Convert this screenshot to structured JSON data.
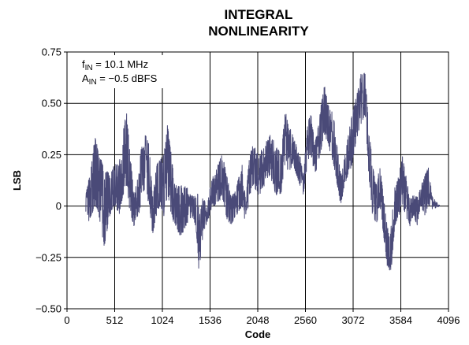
{
  "chart_data": {
    "type": "line",
    "title_line1": "INTEGRAL",
    "title_line2": "NONLINEARITY",
    "xlabel": "Code",
    "ylabel": "LSB",
    "xlim": [
      0,
      4096
    ],
    "ylim": [
      -0.5,
      0.75
    ],
    "x_ticks": [
      0,
      512,
      1024,
      1536,
      2048,
      2560,
      3072,
      3584,
      4096
    ],
    "x_tick_labels": [
      "0",
      "512",
      "1024",
      "1536",
      "2048",
      "2560",
      "3072",
      "3584",
      "4096"
    ],
    "y_ticks": [
      -0.5,
      -0.25,
      0,
      0.25,
      0.5,
      0.75
    ],
    "y_tick_labels": [
      "−0.50",
      "−0.25",
      "0",
      "0.25",
      "0.50",
      "0.75"
    ],
    "grid": true,
    "line_color": "#4a4a78",
    "annotation": {
      "f_main": "f",
      "f_sub": "IN",
      "f_rest": " = 10.1 MHz",
      "a_main": "A",
      "a_sub": "IN",
      "a_rest": " = −0.5 dBFS"
    },
    "series": [
      {
        "envelope": [
          {
            "x": 200,
            "lo": -0.1,
            "hi": 0.05
          },
          {
            "x": 260,
            "lo": -0.05,
            "hi": 0.2
          },
          {
            "x": 300,
            "lo": 0.0,
            "hi": 0.35
          },
          {
            "x": 340,
            "lo": -0.05,
            "hi": 0.25
          },
          {
            "x": 400,
            "lo": -0.2,
            "hi": 0.2
          },
          {
            "x": 460,
            "lo": -0.05,
            "hi": 0.15
          },
          {
            "x": 520,
            "lo": 0.0,
            "hi": 0.22
          },
          {
            "x": 560,
            "lo": -0.05,
            "hi": 0.2
          },
          {
            "x": 600,
            "lo": 0.05,
            "hi": 0.38
          },
          {
            "x": 640,
            "lo": 0.1,
            "hi": 0.45
          },
          {
            "x": 680,
            "lo": -0.05,
            "hi": 0.25
          },
          {
            "x": 720,
            "lo": -0.1,
            "hi": 0.05
          },
          {
            "x": 760,
            "lo": -0.05,
            "hi": 0.15
          },
          {
            "x": 800,
            "lo": 0.0,
            "hi": 0.3
          },
          {
            "x": 840,
            "lo": 0.1,
            "hi": 0.35
          },
          {
            "x": 880,
            "lo": 0.0,
            "hi": 0.3
          },
          {
            "x": 920,
            "lo": -0.15,
            "hi": 0.05
          },
          {
            "x": 960,
            "lo": -0.05,
            "hi": 0.2
          },
          {
            "x": 1000,
            "lo": 0.0,
            "hi": 0.25
          },
          {
            "x": 1040,
            "lo": -0.05,
            "hi": 0.25
          },
          {
            "x": 1080,
            "lo": 0.05,
            "hi": 0.4
          },
          {
            "x": 1120,
            "lo": -0.05,
            "hi": 0.25
          },
          {
            "x": 1160,
            "lo": -0.1,
            "hi": 0.1
          },
          {
            "x": 1220,
            "lo": -0.15,
            "hi": 0.1
          },
          {
            "x": 1280,
            "lo": -0.1,
            "hi": 0.1
          },
          {
            "x": 1340,
            "lo": -0.05,
            "hi": 0.05
          },
          {
            "x": 1380,
            "lo": -0.1,
            "hi": 0.05
          },
          {
            "x": 1400,
            "lo": -0.2,
            "hi": 0.1
          },
          {
            "x": 1420,
            "lo": -0.35,
            "hi": -0.05
          },
          {
            "x": 1460,
            "lo": -0.15,
            "hi": 0.05
          },
          {
            "x": 1500,
            "lo": -0.1,
            "hi": 0.0
          },
          {
            "x": 1560,
            "lo": 0.0,
            "hi": 0.15
          },
          {
            "x": 1620,
            "lo": 0.0,
            "hi": 0.2
          },
          {
            "x": 1660,
            "lo": 0.05,
            "hi": 0.25
          },
          {
            "x": 1700,
            "lo": -0.05,
            "hi": 0.2
          },
          {
            "x": 1760,
            "lo": -0.1,
            "hi": 0.05
          },
          {
            "x": 1820,
            "lo": -0.05,
            "hi": 0.1
          },
          {
            "x": 1880,
            "lo": 0.0,
            "hi": 0.2
          },
          {
            "x": 1920,
            "lo": -0.1,
            "hi": 0.05
          },
          {
            "x": 1960,
            "lo": 0.05,
            "hi": 0.25
          },
          {
            "x": 2000,
            "lo": 0.1,
            "hi": 0.3
          },
          {
            "x": 2060,
            "lo": 0.05,
            "hi": 0.25
          },
          {
            "x": 2120,
            "lo": 0.1,
            "hi": 0.3
          },
          {
            "x": 2180,
            "lo": 0.15,
            "hi": 0.35
          },
          {
            "x": 2240,
            "lo": 0.05,
            "hi": 0.3
          },
          {
            "x": 2300,
            "lo": 0.05,
            "hi": 0.25
          },
          {
            "x": 2340,
            "lo": 0.2,
            "hi": 0.48
          },
          {
            "x": 2380,
            "lo": 0.15,
            "hi": 0.4
          },
          {
            "x": 2420,
            "lo": 0.2,
            "hi": 0.35
          },
          {
            "x": 2460,
            "lo": 0.15,
            "hi": 0.3
          },
          {
            "x": 2500,
            "lo": 0.1,
            "hi": 0.25
          },
          {
            "x": 2540,
            "lo": 0.05,
            "hi": 0.15
          },
          {
            "x": 2580,
            "lo": 0.2,
            "hi": 0.4
          },
          {
            "x": 2620,
            "lo": 0.25,
            "hi": 0.45
          },
          {
            "x": 2660,
            "lo": 0.15,
            "hi": 0.3
          },
          {
            "x": 2700,
            "lo": 0.2,
            "hi": 0.4
          },
          {
            "x": 2760,
            "lo": 0.35,
            "hi": 0.6
          },
          {
            "x": 2800,
            "lo": 0.3,
            "hi": 0.5
          },
          {
            "x": 2860,
            "lo": 0.2,
            "hi": 0.45
          },
          {
            "x": 2900,
            "lo": 0.1,
            "hi": 0.3
          },
          {
            "x": 2940,
            "lo": 0.0,
            "hi": 0.15
          },
          {
            "x": 2980,
            "lo": 0.1,
            "hi": 0.25
          },
          {
            "x": 3020,
            "lo": 0.15,
            "hi": 0.35
          },
          {
            "x": 3060,
            "lo": 0.2,
            "hi": 0.45
          },
          {
            "x": 3100,
            "lo": 0.3,
            "hi": 0.52
          },
          {
            "x": 3160,
            "lo": 0.4,
            "hi": 0.65
          },
          {
            "x": 3200,
            "lo": 0.45,
            "hi": 0.65
          },
          {
            "x": 3240,
            "lo": 0.15,
            "hi": 0.4
          },
          {
            "x": 3280,
            "lo": -0.05,
            "hi": 0.2
          },
          {
            "x": 3320,
            "lo": -0.1,
            "hi": 0.1
          },
          {
            "x": 3360,
            "lo": 0.0,
            "hi": 0.2
          },
          {
            "x": 3400,
            "lo": -0.15,
            "hi": 0.05
          },
          {
            "x": 3440,
            "lo": -0.3,
            "hi": -0.1
          },
          {
            "x": 3480,
            "lo": -0.32,
            "hi": -0.08
          },
          {
            "x": 3520,
            "lo": -0.1,
            "hi": 0.1
          },
          {
            "x": 3560,
            "lo": -0.05,
            "hi": 0.15
          },
          {
            "x": 3600,
            "lo": 0.0,
            "hi": 0.25
          },
          {
            "x": 3640,
            "lo": -0.05,
            "hi": 0.15
          },
          {
            "x": 3680,
            "lo": -0.1,
            "hi": 0.05
          },
          {
            "x": 3720,
            "lo": -0.05,
            "hi": 0.05
          },
          {
            "x": 3760,
            "lo": -0.1,
            "hi": 0.05
          },
          {
            "x": 3800,
            "lo": 0.0,
            "hi": 0.1
          },
          {
            "x": 3840,
            "lo": -0.05,
            "hi": 0.15
          },
          {
            "x": 3880,
            "lo": 0.0,
            "hi": 0.2
          },
          {
            "x": 3920,
            "lo": -0.02,
            "hi": 0.05
          },
          {
            "x": 4000,
            "lo": 0.0,
            "hi": 0.0
          }
        ]
      }
    ]
  }
}
